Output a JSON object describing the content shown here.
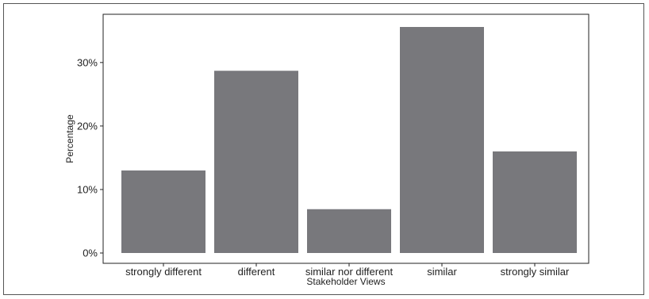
{
  "chart_data": {
    "type": "bar",
    "categories": [
      "strongly different",
      "different",
      "similar nor different",
      "similar",
      "strongly similar"
    ],
    "values": [
      13.0,
      28.7,
      6.9,
      35.6,
      16.0
    ],
    "xlabel": "Stakeholder Views",
    "ylabel": "Percentage",
    "ylim": [
      0,
      37.5
    ],
    "yticks": [
      0,
      10,
      20,
      30
    ],
    "ytick_labels": [
      "0%",
      "10%",
      "20%",
      "30%"
    ],
    "grid": false,
    "bar_color": "#78787c"
  }
}
